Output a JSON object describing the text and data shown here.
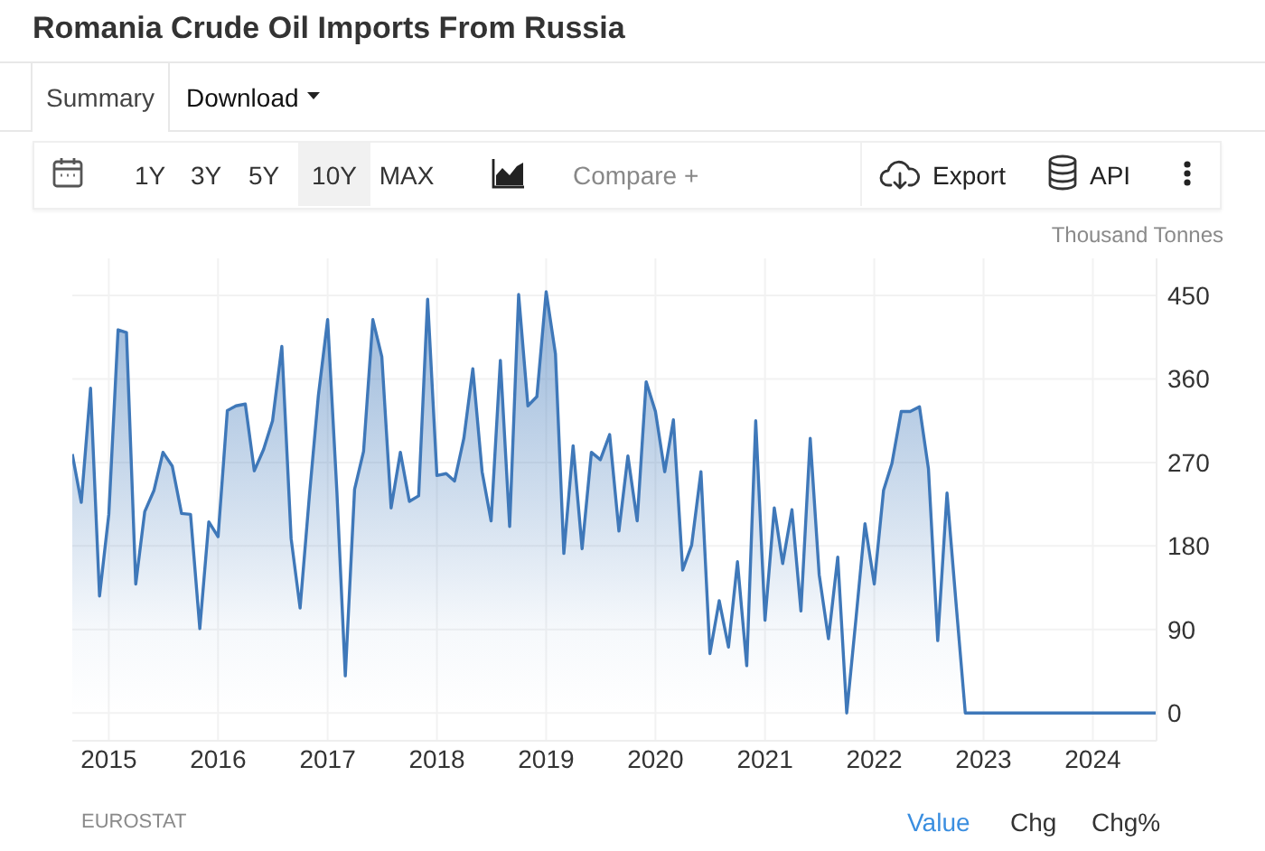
{
  "chart_data": {
    "type": "area",
    "title": "Romania Crude Oil Imports From Russia",
    "ylabel": "Thousand Tonnes",
    "annotations": [
      "Summary",
      "Download",
      "1Y",
      "3Y",
      "5Y",
      "10Y",
      "MAX",
      "Compare +",
      "Export",
      "API",
      "EUROSTAT",
      "Value",
      "Chg",
      "Chg%"
    ],
    "x": [
      "2014-09",
      "2014-10",
      "2014-11",
      "2014-12",
      "2015-01",
      "2015-02",
      "2015-03",
      "2015-04",
      "2015-05",
      "2015-06",
      "2015-07",
      "2015-08",
      "2015-09",
      "2015-10",
      "2015-11",
      "2015-12",
      "2016-01",
      "2016-02",
      "2016-03",
      "2016-04",
      "2016-05",
      "2016-06",
      "2016-07",
      "2016-08",
      "2016-09",
      "2016-10",
      "2016-11",
      "2016-12",
      "2017-01",
      "2017-02",
      "2017-03",
      "2017-04",
      "2017-05",
      "2017-06",
      "2017-07",
      "2017-08",
      "2017-09",
      "2017-10",
      "2017-11",
      "2017-12",
      "2018-01",
      "2018-02",
      "2018-03",
      "2018-04",
      "2018-05",
      "2018-06",
      "2018-07",
      "2018-08",
      "2018-09",
      "2018-10",
      "2018-11",
      "2018-12",
      "2019-01",
      "2019-02",
      "2019-03",
      "2019-04",
      "2019-05",
      "2019-06",
      "2019-07",
      "2019-08",
      "2019-09",
      "2019-10",
      "2019-11",
      "2019-12",
      "2020-01",
      "2020-02",
      "2020-03",
      "2020-04",
      "2020-05",
      "2020-06",
      "2020-07",
      "2020-08",
      "2020-09",
      "2020-10",
      "2020-11",
      "2020-12",
      "2021-01",
      "2021-02",
      "2021-03",
      "2021-04",
      "2021-05",
      "2021-06",
      "2021-07",
      "2021-08",
      "2021-09",
      "2021-10",
      "2021-11",
      "2021-12",
      "2022-01",
      "2022-02",
      "2022-03",
      "2022-04",
      "2022-05",
      "2022-06",
      "2022-07",
      "2022-08",
      "2022-09",
      "2022-10",
      "2022-11",
      "2022-12",
      "2023-01",
      "2023-02",
      "2023-03",
      "2023-04",
      "2023-05",
      "2023-06",
      "2023-07",
      "2023-08",
      "2023-09",
      "2023-10",
      "2023-11",
      "2023-12",
      "2024-01",
      "2024-02",
      "2024-03",
      "2024-04",
      "2024-05",
      "2024-06",
      "2024-07",
      "2024-08"
    ],
    "values": [
      279,
      227,
      350,
      126,
      214,
      413,
      410,
      139,
      217,
      240,
      281,
      266,
      215,
      214,
      91,
      206,
      190,
      326,
      331,
      333,
      261,
      284,
      315,
      395,
      188,
      113,
      234,
      342,
      424,
      238,
      40,
      241,
      282,
      424,
      384,
      221,
      281,
      228,
      234,
      446,
      256,
      258,
      250,
      296,
      371,
      260,
      207,
      380,
      201,
      451,
      331,
      341,
      454,
      387,
      172,
      288,
      177,
      281,
      273,
      300,
      196,
      277,
      207,
      357,
      325,
      260,
      316,
      154,
      181,
      260,
      64,
      121,
      71,
      163,
      51,
      315,
      100,
      221,
      161,
      219,
      110,
      296,
      149,
      80,
      168,
      0,
      102,
      204,
      139,
      240,
      269,
      325,
      325,
      330,
      263,
      78,
      237,
      119,
      0,
      0,
      0,
      0,
      0,
      0,
      0,
      0,
      0,
      0,
      0,
      0,
      0,
      0,
      0,
      0,
      0,
      0,
      0,
      0,
      0,
      0
    ],
    "color": "#3f78b9",
    "xlim": [
      "2014-09",
      "2024-08"
    ],
    "xticks": [
      "2015",
      "2016",
      "2017",
      "2018",
      "2019",
      "2020",
      "2021",
      "2022",
      "2023",
      "2024"
    ],
    "ylim": [
      -30,
      490
    ],
    "yticks": [
      0,
      90,
      180,
      270,
      360,
      450
    ],
    "grid": true
  }
}
